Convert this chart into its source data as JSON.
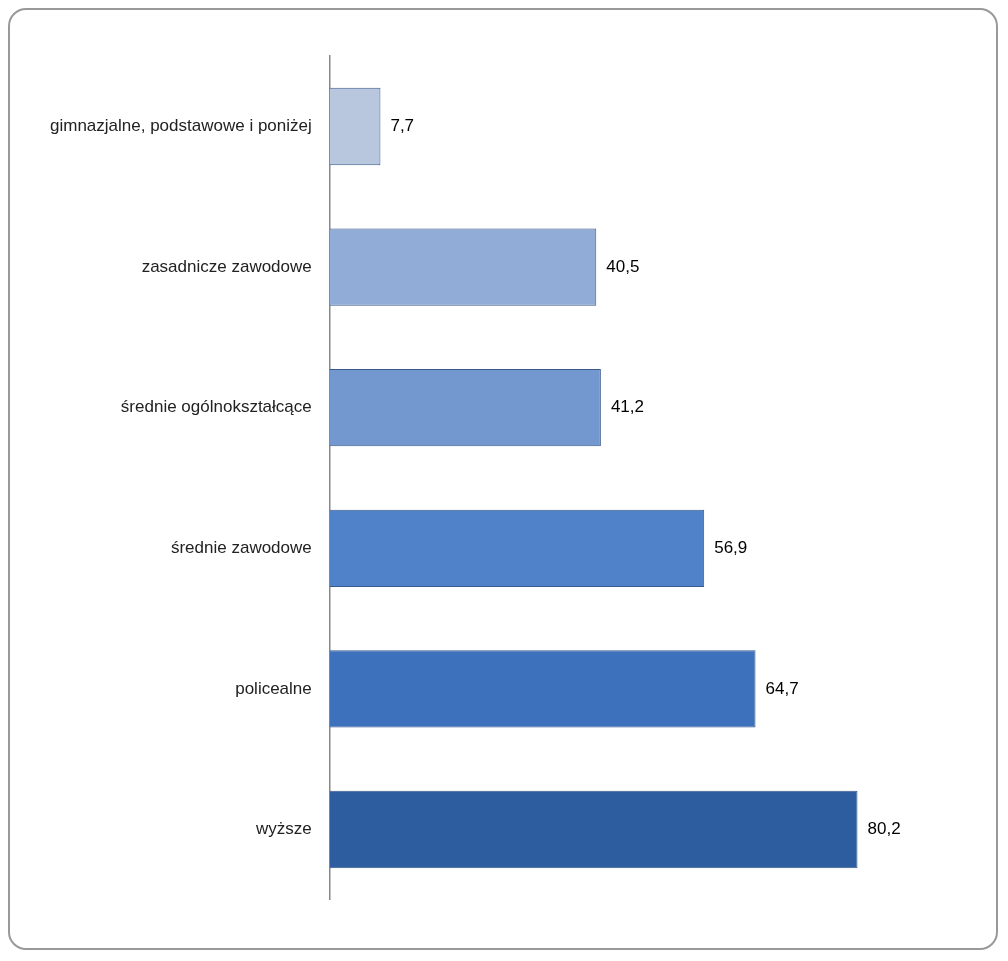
{
  "chart_data": {
    "type": "bar",
    "orientation": "horizontal",
    "categories": [
      "gimnazjalne, podstawowe i poniżej",
      "zasadnicze zawodowe",
      "średnie ogólnokształcące",
      "średnie zawodowe",
      "policealne",
      "wyższe"
    ],
    "values": [
      7.7,
      40.5,
      41.2,
      56.9,
      64.7,
      80.2
    ],
    "value_labels": [
      "7,7",
      "40,5",
      "41,2",
      "56,9",
      "64,7",
      "80,2"
    ],
    "colors": [
      "#b9c7de",
      "#91acd6",
      "#7398d0",
      "#4f82c9",
      "#3d71bb",
      "#2d5d9f"
    ],
    "legend": false
  }
}
